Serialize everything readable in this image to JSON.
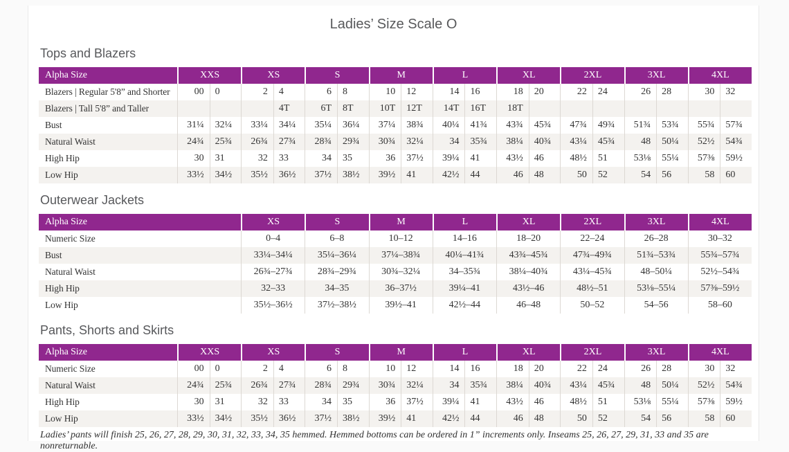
{
  "page": {
    "title": "Ladies’ Size Scale O",
    "footnote": "Ladies’ pants will finish 25, 26, 27, 28, 29, 30, 31, 32, 33, 34, 35 hemmed. Hemmed bottoms can be ordered in 1” increments only. Inseams 25, 26, 27, 29, 31, 33 and 35 are nonreturnable."
  },
  "colors": {
    "header_purple": "#90278e",
    "row_alt": "#f4f2ef"
  },
  "tables": [
    {
      "id": "tops-and-blazers",
      "section_title": "Tops and Blazers",
      "label_header": "Alpha Size",
      "size_headers": [
        "XXS",
        "XS",
        "S",
        "M",
        "L",
        "XL",
        "2XL",
        "3XL",
        "4XL"
      ],
      "columns_per_size": 2,
      "rows": [
        {
          "label": "Blazers | Regular 5'8” and Shorter",
          "values": [
            "00",
            "0",
            "2",
            "4",
            "6",
            "8",
            "10",
            "12",
            "14",
            "16",
            "18",
            "20",
            "22",
            "24",
            "26",
            "28",
            "30",
            "32"
          ]
        },
        {
          "label": "Blazers | Tall 5'8” and Taller",
          "values": [
            "",
            "",
            "",
            "4T",
            "6T",
            "8T",
            "10T",
            "12T",
            "14T",
            "16T",
            "18T",
            "",
            "",
            "",
            "",
            "",
            "",
            ""
          ]
        },
        {
          "label": "Bust",
          "values": [
            "31¼",
            "32¼",
            "33¼",
            "34¼",
            "35¼",
            "36¼",
            "37¼",
            "38¾",
            "40¼",
            "41¾",
            "43¾",
            "45¾",
            "47¾",
            "49¾",
            "51¾",
            "53¾",
            "55¾",
            "57¾"
          ]
        },
        {
          "label": "Natural Waist",
          "values": [
            "24¾",
            "25¾",
            "26¾",
            "27¾",
            "28¾",
            "29¾",
            "30¾",
            "32¼",
            "34",
            "35¾",
            "38¼",
            "40¾",
            "43¼",
            "45¾",
            "48",
            "50¼",
            "52½",
            "54¾"
          ]
        },
        {
          "label": "High Hip",
          "values": [
            "30",
            "31",
            "32",
            "33",
            "34",
            "35",
            "36",
            "37½",
            "39¼",
            "41",
            "43½",
            "46",
            "48½",
            "51",
            "53⅛",
            "55¼",
            "57⅜",
            "59½"
          ]
        },
        {
          "label": "Low Hip",
          "values": [
            "33½",
            "34½",
            "35½",
            "36½",
            "37½",
            "38½",
            "39½",
            "41",
            "42½",
            "44",
            "46",
            "48",
            "50",
            "52",
            "54",
            "56",
            "58",
            "60"
          ]
        }
      ]
    },
    {
      "id": "outerwear-jackets",
      "section_title": "Outerwear Jackets",
      "label_header": "Alpha Size",
      "size_headers": [
        "XS",
        "S",
        "M",
        "L",
        "XL",
        "2XL",
        "3XL",
        "4XL"
      ],
      "columns_per_size": 1,
      "rows": [
        {
          "label": "Numeric Size",
          "values": [
            "0–4",
            "6–8",
            "10–12",
            "14–16",
            "18–20",
            "22–24",
            "26–28",
            "30–32"
          ]
        },
        {
          "label": "Bust",
          "values": [
            "33¼–34¼",
            "35¼–36¼",
            "37¼–38¾",
            "40¼–41¾",
            "43¾–45¾",
            "47¾–49¾",
            "51¾–53¾",
            "55¾–57¾"
          ]
        },
        {
          "label": "Natural Waist",
          "values": [
            "26¾–27¾",
            "28¾–29¾",
            "30¾–32¼",
            "34–35¾",
            "38¼–40¾",
            "43¼–45¾",
            "48–50¼",
            "52½–54¾"
          ]
        },
        {
          "label": "High Hip",
          "values": [
            "32–33",
            "34–35",
            "36–37½",
            "39¼–41",
            "43½–46",
            "48½–51",
            "53⅛–55¼",
            "57⅜–59½"
          ]
        },
        {
          "label": "Low Hip",
          "values": [
            "35½–36½",
            "37½–38½",
            "39½–41",
            "42½–44",
            "46–48",
            "50–52",
            "54–56",
            "58–60"
          ]
        }
      ]
    },
    {
      "id": "pants-shorts-skirts",
      "section_title": "Pants, Shorts and Skirts",
      "label_header": "Alpha Size",
      "size_headers": [
        "XXS",
        "XS",
        "S",
        "M",
        "L",
        "XL",
        "2XL",
        "3XL",
        "4XL"
      ],
      "columns_per_size": 2,
      "rows": [
        {
          "label": "Numeric Size",
          "values": [
            "00",
            "0",
            "2",
            "4",
            "6",
            "8",
            "10",
            "12",
            "14",
            "16",
            "18",
            "20",
            "22",
            "24",
            "26",
            "28",
            "30",
            "32"
          ]
        },
        {
          "label": "Natural Waist",
          "values": [
            "24¾",
            "25¾",
            "26¾",
            "27¾",
            "28¾",
            "29¾",
            "30¾",
            "32¼",
            "34",
            "35¾",
            "38¼",
            "40¾",
            "43¼",
            "45¾",
            "48",
            "50¼",
            "52½",
            "54¾"
          ]
        },
        {
          "label": "High Hip",
          "values": [
            "30",
            "31",
            "32",
            "33",
            "34",
            "35",
            "36",
            "37½",
            "39¼",
            "41",
            "43½",
            "46",
            "48½",
            "51",
            "53⅛",
            "55¼",
            "57⅜",
            "59½"
          ]
        },
        {
          "label": "Low Hip",
          "values": [
            "33½",
            "34½",
            "35½",
            "36½",
            "37½",
            "38½",
            "39½",
            "41",
            "42½",
            "44",
            "46",
            "48",
            "50",
            "52",
            "54",
            "56",
            "58",
            "60"
          ]
        }
      ]
    }
  ]
}
